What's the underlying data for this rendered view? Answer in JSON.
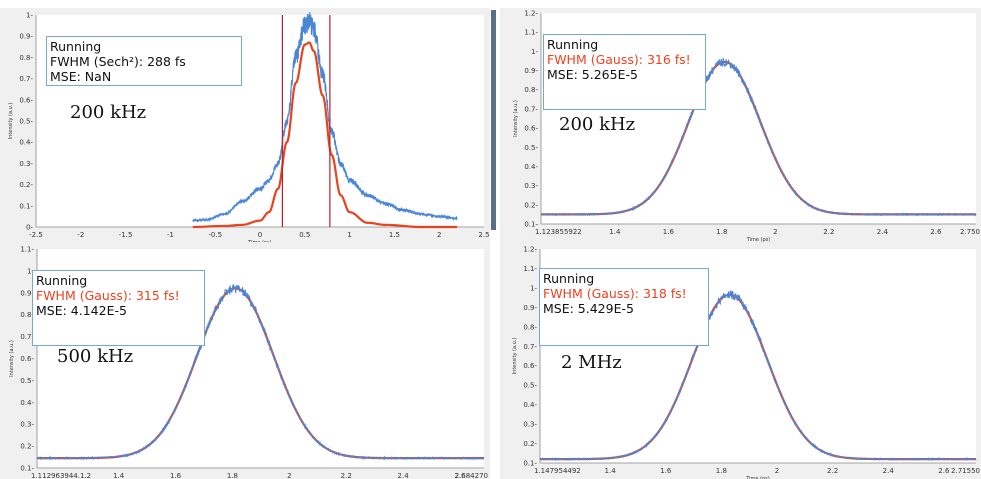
{
  "colors": {
    "measured": "#4a86d4",
    "fit": "#e8431e",
    "marker": "#b8202a"
  },
  "panels": [
    {
      "info_status": "Running",
      "info_fwhm": "FWHM (Sech²): 288 fs",
      "info_mse": "MSE: NaN",
      "fwhm_color": "black",
      "rep_rate": "200 kHz",
      "ylabel": "Intensity (a.u.)",
      "xlabel": "Time (ps)",
      "xticks": [
        "-2.5",
        "-2",
        "-1.5",
        "-1",
        "-0.5",
        "0",
        "0.5",
        "1",
        "1.5",
        "2",
        "2.5"
      ],
      "yticks": [
        "0",
        "0.1",
        "0.2",
        "0.3",
        "0.4",
        "0.5",
        "0.6",
        "0.7",
        "0.8",
        "0.9",
        "1"
      ]
    },
    {
      "info_status": "Running",
      "info_fwhm": "FWHM (Gauss): 316 fs!",
      "info_mse": "MSE: 5.265E-5",
      "fwhm_color": "red",
      "rep_rate": "200 kHz",
      "ylabel": "Intensity (a.u.)",
      "xlabel": "Time (ps)",
      "xticks": [
        "1.123855922",
        "1.4",
        "1.6",
        "1.8",
        "2",
        "2.2",
        "2.4",
        "2.6",
        "2.750"
      ],
      "yticks": [
        "0.1",
        "0.2",
        "0.3",
        "0.4",
        "0.5",
        "0.6",
        "0.7",
        "0.8",
        "0.9",
        "1",
        "1.1",
        "1.2"
      ]
    },
    {
      "info_status": "Running",
      "info_fwhm": "FWHM (Gauss): 315 fs!",
      "info_mse": "MSE: 4.142E-5",
      "fwhm_color": "red",
      "rep_rate": "500 kHz",
      "ylabel": "Intensity (a.u.)",
      "xlabel": "Time (ps)",
      "xticks": [
        "1.112963944.1.2",
        "1.4",
        "1.6",
        "1.8",
        "2",
        "2.2",
        "2.4",
        "2.6",
        "2.684270"
      ],
      "yticks": [
        "0.1",
        "0.2",
        "0.3",
        "0.4",
        "0.5",
        "0.6",
        "0.7",
        "0.8",
        "0.9",
        "1",
        "1.1"
      ]
    },
    {
      "info_status": "Running",
      "info_fwhm": "FWHM (Gauss): 318 fs!",
      "info_mse": "MSE: 5.429E-5",
      "fwhm_color": "red",
      "rep_rate": "2 MHz",
      "ylabel": "Intensity (a.u.)",
      "xlabel": "Time (ps)",
      "xticks": [
        "1.147954492",
        "1.4",
        "1.6",
        "1.8",
        "2",
        "2.2",
        "2.4",
        "2.6",
        "2.71550"
      ],
      "yticks": [
        "0.1",
        "0.2",
        "0.3",
        "0.4",
        "0.5",
        "0.6",
        "0.7",
        "0.8",
        "0.9",
        "1",
        "1.1",
        "1.2"
      ]
    }
  ],
  "chart_data": [
    {
      "type": "line",
      "xlim": [
        -2.5,
        2.5
      ],
      "ylim": [
        0,
        1
      ],
      "x_tick_values": [
        -2.5,
        -2,
        -1.5,
        -1,
        -0.5,
        0,
        0.5,
        1,
        1.5,
        2,
        2.5
      ],
      "y_tick_values": [
        0,
        0.1,
        0.2,
        0.3,
        0.4,
        0.5,
        0.6,
        0.7,
        0.8,
        0.9,
        1
      ],
      "markers_x": [
        0.25,
        0.78
      ],
      "series": [
        {
          "kind": "measured",
          "x": [
            -0.75,
            -0.6,
            -0.4,
            -0.2,
            0.0,
            0.1,
            0.2,
            0.3,
            0.4,
            0.5,
            0.55,
            0.6,
            0.7,
            0.8,
            0.9,
            1.0,
            1.2,
            1.4,
            1.6,
            1.8,
            2.0,
            2.2
          ],
          "y": [
            0.03,
            0.035,
            0.06,
            0.12,
            0.18,
            0.22,
            0.3,
            0.5,
            0.8,
            0.95,
            0.97,
            0.93,
            0.72,
            0.45,
            0.3,
            0.22,
            0.15,
            0.11,
            0.08,
            0.06,
            0.05,
            0.04
          ]
        },
        {
          "kind": "fit",
          "x": [
            -0.75,
            -0.4,
            -0.2,
            0.0,
            0.1,
            0.2,
            0.3,
            0.4,
            0.5,
            0.55,
            0.6,
            0.7,
            0.8,
            0.9,
            1.0,
            1.2,
            1.4,
            1.8,
            2.2
          ],
          "y": [
            0.0,
            0.005,
            0.01,
            0.03,
            0.07,
            0.18,
            0.4,
            0.68,
            0.86,
            0.87,
            0.83,
            0.62,
            0.34,
            0.15,
            0.07,
            0.02,
            0.01,
            0.0,
            0.0
          ]
        }
      ]
    },
    {
      "type": "line",
      "xlim": [
        1.123855922,
        2.75
      ],
      "ylim": [
        0.1,
        1.2
      ],
      "x_tick_values": [
        1.4,
        1.6,
        1.8,
        2,
        2.2,
        2.4,
        2.6
      ],
      "y_tick_values": [
        0.1,
        0.2,
        0.3,
        0.4,
        0.5,
        0.6,
        0.7,
        0.8,
        0.9,
        1,
        1.1,
        1.2
      ],
      "gaussian": {
        "amplitude": 0.795,
        "center": 1.81,
        "sigma": 0.134,
        "baseline": 0.15
      },
      "series": [
        {
          "kind": "measured"
        },
        {
          "kind": "fit"
        }
      ]
    },
    {
      "type": "line",
      "xlim": [
        1.1129639441,
        2.68427
      ],
      "ylim": [
        0.1,
        1.1
      ],
      "x_tick_values": [
        1.4,
        1.6,
        1.8,
        2,
        2.2,
        2.4,
        2.6
      ],
      "y_tick_values": [
        0.1,
        0.2,
        0.3,
        0.4,
        0.5,
        0.6,
        0.7,
        0.8,
        0.9,
        1,
        1.1
      ],
      "gaussian": {
        "amplitude": 0.775,
        "center": 1.81,
        "sigma": 0.134,
        "baseline": 0.145
      },
      "series": [
        {
          "kind": "measured"
        },
        {
          "kind": "fit"
        }
      ]
    },
    {
      "type": "line",
      "xlim": [
        1.147954492,
        2.7155
      ],
      "ylim": [
        0.1,
        1.2
      ],
      "x_tick_values": [
        1.4,
        1.6,
        1.8,
        2,
        2.2,
        2.4,
        2.6
      ],
      "y_tick_values": [
        0.1,
        0.2,
        0.3,
        0.4,
        0.5,
        0.6,
        0.7,
        0.8,
        0.9,
        1,
        1.1,
        1.2
      ],
      "gaussian": {
        "amplitude": 0.845,
        "center": 1.83,
        "sigma": 0.135,
        "baseline": 0.12
      },
      "series": [
        {
          "kind": "measured"
        },
        {
          "kind": "fit"
        }
      ]
    }
  ]
}
